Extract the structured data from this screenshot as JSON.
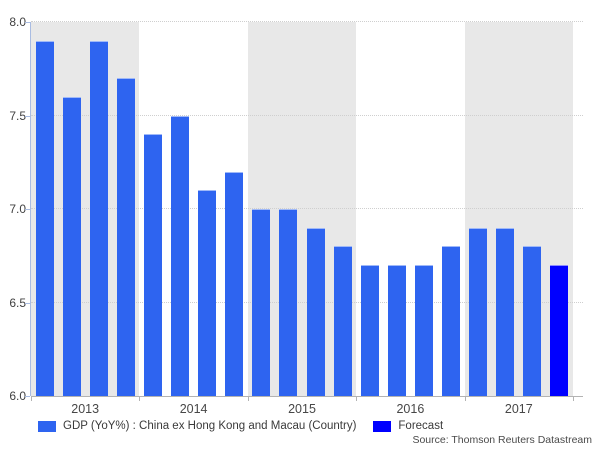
{
  "chart_data": {
    "type": "bar",
    "title": "",
    "ylim": [
      6.0,
      8.0
    ],
    "y_tick_labels": [
      "8.0",
      "7.5",
      "7.0",
      "6.5",
      "6.0"
    ],
    "x_year_labels": [
      "2013",
      "2014",
      "2015",
      "2016",
      "2017"
    ],
    "grid": "horizontal dotted gridlines; alternating year background bands",
    "plot_band_colors": [
      "#e8e8e8",
      "#ffffff"
    ],
    "axis_color": "#a9bce2",
    "baseline_color": "#b3b3b3",
    "bars": [
      {
        "category": "2013 Q1",
        "value": 7.9,
        "series": "gdp"
      },
      {
        "category": "2013 Q2",
        "value": 7.6,
        "series": "gdp"
      },
      {
        "category": "2013 Q3",
        "value": 7.9,
        "series": "gdp"
      },
      {
        "category": "2013 Q4",
        "value": 7.7,
        "series": "gdp"
      },
      {
        "category": "2014 Q1",
        "value": 7.4,
        "series": "gdp"
      },
      {
        "category": "2014 Q2",
        "value": 7.5,
        "series": "gdp"
      },
      {
        "category": "2014 Q3",
        "value": 7.1,
        "series": "gdp"
      },
      {
        "category": "2014 Q4",
        "value": 7.2,
        "series": "gdp"
      },
      {
        "category": "2015 Q1",
        "value": 7.0,
        "series": "gdp"
      },
      {
        "category": "2015 Q2",
        "value": 7.0,
        "series": "gdp"
      },
      {
        "category": "2015 Q3",
        "value": 6.9,
        "series": "gdp"
      },
      {
        "category": "2015 Q4",
        "value": 6.8,
        "series": "gdp"
      },
      {
        "category": "2016 Q1",
        "value": 6.7,
        "series": "gdp"
      },
      {
        "category": "2016 Q2",
        "value": 6.7,
        "series": "gdp"
      },
      {
        "category": "2016 Q3",
        "value": 6.7,
        "series": "gdp"
      },
      {
        "category": "2016 Q4",
        "value": 6.8,
        "series": "gdp"
      },
      {
        "category": "2017 Q1",
        "value": 6.9,
        "series": "gdp"
      },
      {
        "category": "2017 Q2",
        "value": 6.9,
        "series": "gdp"
      },
      {
        "category": "2017 Q3",
        "value": 6.8,
        "series": "gdp"
      },
      {
        "category": "2017 Q4",
        "value": 6.7,
        "series": "forecast"
      }
    ],
    "legend": [
      {
        "id": "gdp",
        "label": "GDP (YoY%) : China ex Hong Kong and Macau (Country)",
        "color": "#2e64f0"
      },
      {
        "id": "forecast",
        "label": "Forecast",
        "color": "#0000ff"
      }
    ],
    "source": "Source: Thomson Reuters Datastream"
  }
}
